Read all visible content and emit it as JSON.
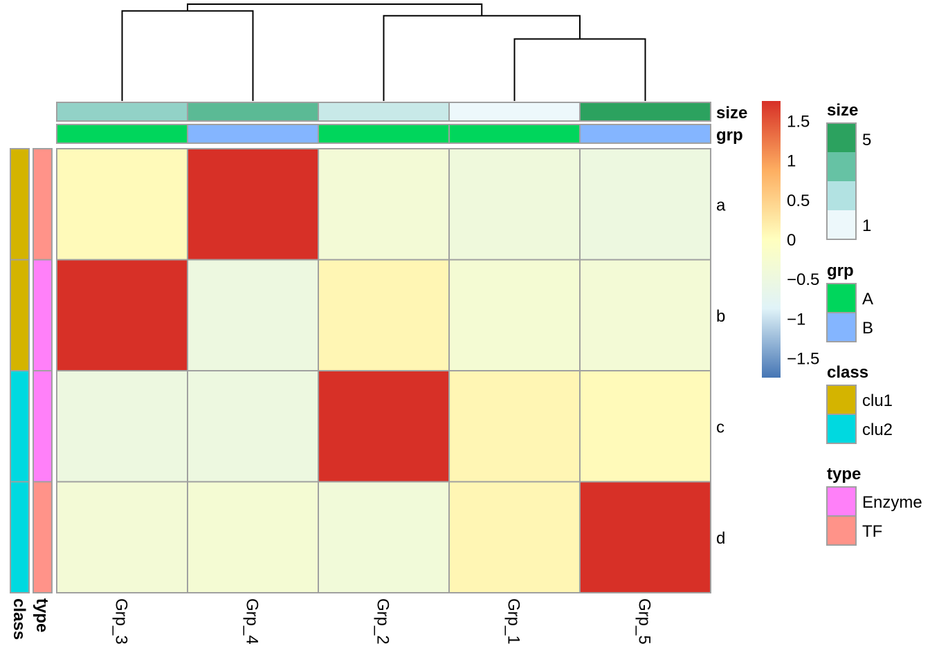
{
  "chart_data": {
    "type": "heatmap",
    "title": "",
    "columns": [
      "Grp_3",
      "Grp_4",
      "Grp_2",
      "Grp_1",
      "Grp_5"
    ],
    "rows": [
      "a",
      "b",
      "c",
      "d"
    ],
    "values": [
      [
        0.05,
        1.8,
        -0.35,
        -0.45,
        -0.5
      ],
      [
        1.8,
        -0.5,
        0.1,
        -0.3,
        -0.35
      ],
      [
        -0.5,
        -0.5,
        1.8,
        0.1,
        0.05
      ],
      [
        -0.35,
        -0.3,
        -0.4,
        0.1,
        1.8
      ]
    ],
    "color_scale": {
      "min": -1.75,
      "max": 1.75,
      "stops": [
        "#4575b4",
        "#e0f3f8",
        "#ffffbf",
        "#fdae61",
        "#d73027"
      ],
      "ticks": [
        1.5,
        1,
        0.5,
        0,
        -0.5,
        -1,
        -1.5
      ],
      "tick_labels": [
        "1.5",
        "1",
        "0.5",
        "0",
        "−0.5",
        "−1",
        "−1.5"
      ]
    },
    "column_annotations": [
      {
        "name": "size",
        "values": [
          3,
          4,
          2,
          1,
          5
        ]
      },
      {
        "name": "grp",
        "values": [
          "A",
          "B",
          "A",
          "A",
          "B"
        ]
      }
    ],
    "row_annotations": [
      {
        "name": "class",
        "values": [
          "clu1",
          "clu1",
          "clu2",
          "clu2"
        ]
      },
      {
        "name": "type",
        "values": [
          "TF",
          "Enzyme",
          "Enzyme",
          "TF"
        ]
      }
    ],
    "column_dendrogram": {
      "merges": [
        {
          "left": "Grp_3",
          "right": "Grp_4",
          "height": 0.93
        },
        {
          "left": "Grp_1",
          "right": "Grp_5",
          "height": 0.64
        },
        {
          "left": "Grp_2",
          "right": "Grp_1+Grp_5",
          "height": 0.88
        },
        {
          "left": "Grp_3+Grp_4",
          "right": "Grp_2+Grp_1+Grp_5",
          "height": 1.0
        }
      ]
    }
  },
  "legends": [
    {
      "title": "size",
      "type": "continuous",
      "colors": [
        "#2ca25f",
        "#66c2a4",
        "#b2e2e2",
        "#edf8fb"
      ],
      "labels": [
        "5",
        "1"
      ]
    },
    {
      "title": "grp",
      "type": "discrete",
      "items": [
        {
          "label": "A",
          "color": "#00d65c"
        },
        {
          "label": "B",
          "color": "#84b5ff"
        }
      ]
    },
    {
      "title": "class",
      "type": "discrete",
      "items": [
        {
          "label": "clu1",
          "color": "#d4b400"
        },
        {
          "label": "clu2",
          "color": "#00d9e0"
        }
      ]
    },
    {
      "title": "type",
      "type": "discrete",
      "items": [
        {
          "label": "Enzyme",
          "color": "#ff80f9"
        },
        {
          "label": "TF",
          "color": "#ff9389"
        }
      ]
    }
  ],
  "annotation_colors": {
    "size": {
      "1": "#edf8fb",
      "2": "#c8e9e8",
      "3": "#92d2c7",
      "4": "#5bba95",
      "5": "#2ca25f"
    },
    "grp": {
      "A": "#00d65c",
      "B": "#84b5ff"
    },
    "class": {
      "clu1": "#d4b400",
      "clu2": "#00d9e0"
    },
    "type": {
      "Enzyme": "#ff80f9",
      "TF": "#ff9389"
    }
  },
  "border_color": "#a0a0a0"
}
